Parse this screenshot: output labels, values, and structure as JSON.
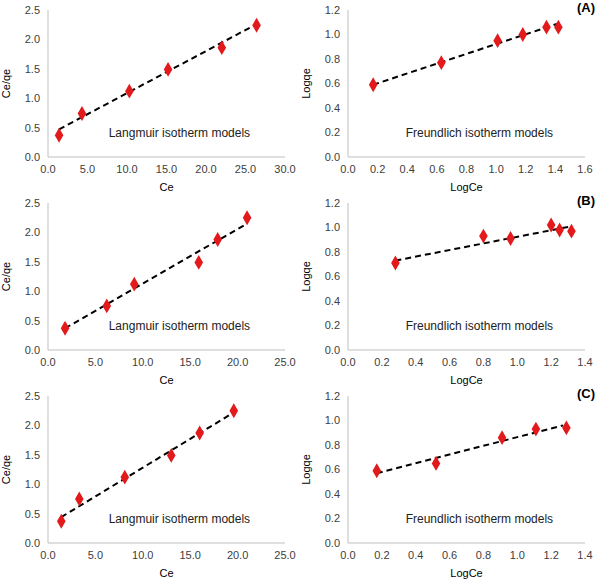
{
  "chart_data": [
    {
      "type": "scatter",
      "xlabel": "Ce",
      "ylabel": "Ce/qe",
      "annotation": "Langmuir isotherm models",
      "grid": false,
      "x": [
        1.4,
        4.3,
        10.3,
        15.2,
        22.0,
        26.4
      ],
      "values": [
        0.37,
        0.74,
        1.12,
        1.49,
        1.86,
        2.24
      ],
      "color": "#e31a1c",
      "marker": "diamond",
      "fit": {
        "x": [
          1.4,
          26.4
        ],
        "values": [
          0.47,
          2.26
        ],
        "color": "#000000",
        "line_style": "dashed"
      },
      "xlim": [
        0,
        30
      ],
      "ylim": [
        0,
        2.5
      ],
      "xticks": [
        {
          "value": 0,
          "label": "0.0"
        },
        {
          "value": 5,
          "label": "5.0"
        },
        {
          "value": 10,
          "label": "10.0"
        },
        {
          "value": 15,
          "label": "15.0"
        },
        {
          "value": 20,
          "label": "20.0"
        },
        {
          "value": 25,
          "label": "25.0"
        },
        {
          "value": 30,
          "label": "30.0"
        }
      ],
      "yticks": [
        {
          "value": 0,
          "label": "0.0"
        },
        0.5,
        {
          "value": 1,
          "label": "1.0"
        },
        1.5,
        {
          "value": 2,
          "label": "2.0"
        },
        2.5
      ]
    },
    {
      "type": "scatter",
      "panel": "(A)",
      "xlabel": "LogCe",
      "ylabel": "Logqe",
      "annotation": "Freundlich isotherm models",
      "grid": false,
      "x": [
        0.17,
        0.63,
        1.01,
        1.18,
        1.34,
        1.42
      ],
      "values": [
        0.59,
        0.77,
        0.95,
        1.0,
        1.06,
        1.06
      ],
      "color": "#e31a1c",
      "marker": "diamond",
      "fit": {
        "x": [
          0.17,
          1.42
        ],
        "values": [
          0.59,
          1.09
        ],
        "color": "#000000",
        "line_style": "dashed"
      },
      "xlim": [
        0,
        1.6
      ],
      "ylim": [
        0,
        1.2
      ],
      "xticks": [
        {
          "value": 0,
          "label": "0.0"
        },
        0.2,
        0.4,
        0.6,
        0.8,
        {
          "value": 1,
          "label": "1.0"
        },
        1.2,
        1.4,
        1.6
      ],
      "yticks": [
        {
          "value": 0,
          "label": "0.0"
        },
        0.2,
        0.4,
        0.6,
        0.8,
        {
          "value": 1,
          "label": "1.0"
        },
        1.2
      ]
    },
    {
      "type": "scatter",
      "xlabel": "Ce",
      "ylabel": "Ce/qe",
      "annotation": "Langmuir isotherm models",
      "grid": false,
      "x": [
        1.8,
        6.2,
        9.1,
        15.9,
        17.9,
        21.0
      ],
      "values": [
        0.37,
        0.75,
        1.12,
        1.49,
        1.88,
        2.25
      ],
      "color": "#e31a1c",
      "marker": "diamond",
      "fit": {
        "x": [
          1.8,
          21.0
        ],
        "values": [
          0.37,
          2.15
        ],
        "color": "#000000",
        "line_style": "dashed"
      },
      "xlim": [
        0,
        25
      ],
      "ylim": [
        0,
        2.5
      ],
      "xticks": [
        {
          "value": 0,
          "label": "0.0"
        },
        {
          "value": 5,
          "label": "5.0"
        },
        {
          "value": 10,
          "label": "10.0"
        },
        {
          "value": 15,
          "label": "15.0"
        },
        {
          "value": 20,
          "label": "20.0"
        },
        {
          "value": 25,
          "label": "25.0"
        }
      ],
      "yticks": [
        {
          "value": 0,
          "label": "0.0"
        },
        0.5,
        {
          "value": 1,
          "label": "1.0"
        },
        1.5,
        {
          "value": 2,
          "label": "2.0"
        },
        2.5
      ]
    },
    {
      "type": "scatter",
      "panel": "(B)",
      "xlabel": "LogCe",
      "ylabel": "Logqe",
      "annotation": "Freundlich isotherm models",
      "grid": false,
      "x": [
        0.28,
        0.8,
        0.96,
        1.2,
        1.25,
        1.32
      ],
      "values": [
        0.71,
        0.93,
        0.91,
        1.02,
        0.98,
        0.97
      ],
      "color": "#e31a1c",
      "marker": "diamond",
      "fit": {
        "x": [
          0.28,
          1.32
        ],
        "values": [
          0.73,
          1.01
        ],
        "color": "#000000",
        "line_style": "dashed"
      },
      "xlim": [
        0,
        1.4
      ],
      "ylim": [
        0,
        1.2
      ],
      "xticks": [
        {
          "value": 0,
          "label": "0.0"
        },
        0.2,
        0.4,
        0.6,
        0.8,
        {
          "value": 1,
          "label": "1.0"
        },
        1.2,
        1.4
      ],
      "yticks": [
        {
          "value": 0,
          "label": "0.0"
        },
        0.2,
        0.4,
        0.6,
        0.8,
        {
          "value": 1,
          "label": "1.0"
        },
        1.2
      ]
    },
    {
      "type": "scatter",
      "xlabel": "Ce",
      "ylabel": "Ce/qe",
      "annotation": "Langmuir isotherm models",
      "grid": false,
      "x": [
        1.4,
        3.3,
        8.1,
        13.0,
        16.0,
        19.6
      ],
      "values": [
        0.37,
        0.75,
        1.12,
        1.49,
        1.87,
        2.25
      ],
      "color": "#e31a1c",
      "marker": "diamond",
      "fit": {
        "x": [
          1.4,
          19.6
        ],
        "values": [
          0.44,
          2.22
        ],
        "color": "#000000",
        "line_style": "dashed"
      },
      "xlim": [
        0,
        25
      ],
      "ylim": [
        0,
        2.5
      ],
      "xticks": [
        {
          "value": 0,
          "label": "0.0"
        },
        {
          "value": 5,
          "label": "5.0"
        },
        {
          "value": 10,
          "label": "10.0"
        },
        {
          "value": 15,
          "label": "15.0"
        },
        {
          "value": 20,
          "label": "20.0"
        },
        {
          "value": 25,
          "label": "25.0"
        }
      ],
      "yticks": [
        {
          "value": 0,
          "label": "0.0"
        },
        0.5,
        {
          "value": 1,
          "label": "1.0"
        },
        1.5,
        {
          "value": 2,
          "label": "2.0"
        },
        2.5
      ]
    },
    {
      "type": "scatter",
      "panel": "(C)",
      "xlabel": "LogCe",
      "ylabel": "Logqe",
      "annotation": "Freundlich isotherm models",
      "grid": false,
      "x": [
        0.17,
        0.52,
        0.91,
        1.11,
        1.29
      ],
      "values": [
        0.59,
        0.65,
        0.86,
        0.93,
        0.94
      ],
      "color": "#e31a1c",
      "marker": "diamond",
      "fit": {
        "x": [
          0.17,
          1.27
        ],
        "values": [
          0.57,
          0.96
        ],
        "color": "#000000",
        "line_style": "dashed"
      },
      "xlim": [
        0,
        1.4
      ],
      "ylim": [
        0,
        1.2
      ],
      "xticks": [
        {
          "value": 0,
          "label": "0.0"
        },
        0.2,
        0.4,
        0.6,
        0.8,
        {
          "value": 1,
          "label": "1.0"
        },
        1.2,
        1.4
      ],
      "yticks": [
        {
          "value": 0,
          "label": "0.0"
        },
        0.2,
        0.4,
        0.6,
        0.8,
        {
          "value": 1,
          "label": "1.0"
        },
        1.2
      ]
    }
  ]
}
